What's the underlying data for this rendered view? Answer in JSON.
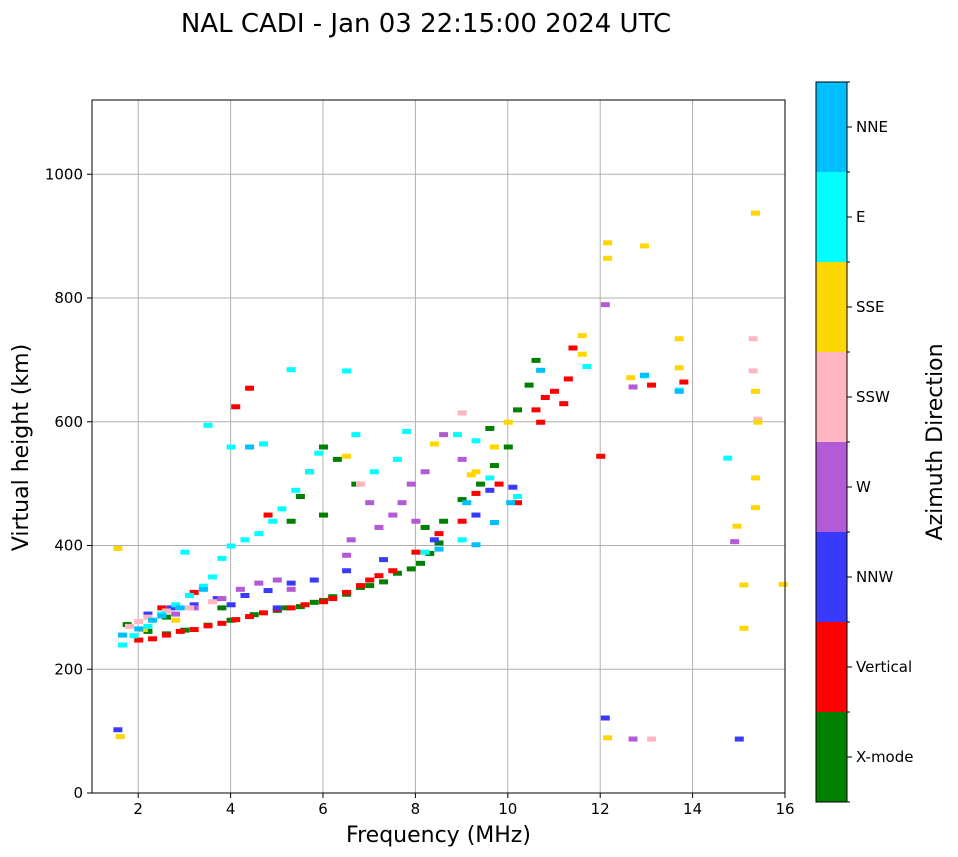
{
  "chart_data": {
    "type": "scatter",
    "title": "NAL CADI - Jan 03 22:15:00 2024 UTC",
    "xlabel": "Frequency (MHz)",
    "ylabel": "Virtual height (km)",
    "xlim": [
      1,
      16
    ],
    "ylim": [
      0,
      1120
    ],
    "xticks": [
      2,
      4,
      6,
      8,
      10,
      12,
      14,
      16
    ],
    "yticks": [
      0,
      200,
      400,
      600,
      800,
      1000
    ],
    "grid": true,
    "colorbar": {
      "label": "Azimuth Direction",
      "categories": [
        "X-mode",
        "Vertical",
        "NNW",
        "W",
        "SSW",
        "SSE",
        "E",
        "NNE"
      ],
      "colors": [
        "#008000",
        "#ff0000",
        "#3a3aff",
        "#b35ad6",
        "#ffb6c1",
        "#ffd700",
        "#00ffff",
        "#00bfff"
      ]
    },
    "series": [
      {
        "name": "X-mode",
        "points": [
          [
            1.75,
            273
          ],
          [
            2.2,
            262
          ],
          [
            2.6,
            258
          ],
          [
            3.0,
            264
          ],
          [
            3.5,
            272
          ],
          [
            4.0,
            280
          ],
          [
            4.5,
            289
          ],
          [
            5.0,
            296
          ],
          [
            5.2,
            300
          ],
          [
            5.5,
            302
          ],
          [
            5.8,
            309
          ],
          [
            6.0,
            312
          ],
          [
            6.2,
            318
          ],
          [
            6.5,
            322
          ],
          [
            6.8,
            333
          ],
          [
            7.0,
            336
          ],
          [
            7.3,
            342
          ],
          [
            7.6,
            356
          ],
          [
            7.9,
            363
          ],
          [
            8.1,
            372
          ],
          [
            8.3,
            388
          ],
          [
            8.5,
            405
          ],
          [
            8.6,
            440
          ],
          [
            9.0,
            475
          ],
          [
            9.4,
            500
          ],
          [
            9.7,
            530
          ],
          [
            10.0,
            560
          ],
          [
            10.2,
            620
          ],
          [
            10.45,
            660
          ],
          [
            10.6,
            700
          ],
          [
            6.0,
            450
          ],
          [
            6.0,
            560
          ],
          [
            5.3,
            440
          ],
          [
            5.5,
            480
          ],
          [
            6.3,
            540
          ],
          [
            6.7,
            500
          ],
          [
            8.2,
            430
          ],
          [
            9.6,
            590
          ],
          [
            3.8,
            300
          ],
          [
            2.6,
            285
          ]
        ]
      },
      {
        "name": "Vertical",
        "points": [
          [
            2.0,
            248
          ],
          [
            2.3,
            250
          ],
          [
            2.6,
            256
          ],
          [
            2.9,
            262
          ],
          [
            3.2,
            265
          ],
          [
            3.5,
            271
          ],
          [
            3.8,
            275
          ],
          [
            4.1,
            281
          ],
          [
            4.4,
            286
          ],
          [
            4.7,
            292
          ],
          [
            5.0,
            298
          ],
          [
            5.3,
            300
          ],
          [
            5.6,
            305
          ],
          [
            6.0,
            310
          ],
          [
            6.2,
            315
          ],
          [
            6.5,
            325
          ],
          [
            6.8,
            336
          ],
          [
            7.0,
            345
          ],
          [
            7.2,
            352
          ],
          [
            7.5,
            360
          ],
          [
            8.0,
            390
          ],
          [
            8.5,
            420
          ],
          [
            9.0,
            440
          ],
          [
            9.3,
            485
          ],
          [
            9.8,
            500
          ],
          [
            10.6,
            620
          ],
          [
            10.8,
            640
          ],
          [
            11.0,
            650
          ],
          [
            11.2,
            630
          ],
          [
            11.3,
            670
          ],
          [
            10.7,
            600
          ],
          [
            11.4,
            720
          ],
          [
            12.0,
            545
          ],
          [
            13.1,
            660
          ],
          [
            13.8,
            665
          ],
          [
            4.1,
            625
          ],
          [
            4.4,
            655
          ],
          [
            5.7,
            520
          ],
          [
            4.8,
            450
          ],
          [
            10.2,
            470
          ],
          [
            3.2,
            325
          ],
          [
            2.5,
            300
          ]
        ]
      },
      {
        "name": "NNW",
        "points": [
          [
            1.55,
            103
          ],
          [
            2.2,
            290
          ],
          [
            2.7,
            300
          ],
          [
            3.2,
            305
          ],
          [
            3.7,
            315
          ],
          [
            4.3,
            320
          ],
          [
            4.8,
            328
          ],
          [
            5.3,
            340
          ],
          [
            5.8,
            345
          ],
          [
            6.5,
            360
          ],
          [
            7.3,
            378
          ],
          [
            8.4,
            410
          ],
          [
            9.3,
            450
          ],
          [
            9.6,
            490
          ],
          [
            10.1,
            495
          ],
          [
            12.1,
            122
          ],
          [
            15.0,
            88
          ],
          [
            5.0,
            300
          ],
          [
            4.0,
            305
          ]
        ]
      },
      {
        "name": "W",
        "points": [
          [
            2.8,
            290
          ],
          [
            3.2,
            300
          ],
          [
            3.8,
            315
          ],
          [
            4.2,
            330
          ],
          [
            4.6,
            340
          ],
          [
            5.0,
            345
          ],
          [
            5.3,
            330
          ],
          [
            6.5,
            385
          ],
          [
            7.0,
            470
          ],
          [
            7.5,
            450
          ],
          [
            7.7,
            470
          ],
          [
            7.9,
            500
          ],
          [
            8.2,
            520
          ],
          [
            8.6,
            580
          ],
          [
            9.0,
            540
          ],
          [
            12.1,
            790
          ],
          [
            12.7,
            657
          ],
          [
            12.7,
            88
          ],
          [
            14.9,
            407
          ],
          [
            6.6,
            410
          ],
          [
            7.2,
            430
          ],
          [
            8.0,
            440
          ]
        ]
      },
      {
        "name": "SSW",
        "points": [
          [
            1.8,
            270
          ],
          [
            2.2,
            285
          ],
          [
            2.6,
            295
          ],
          [
            3.1,
            300
          ],
          [
            3.6,
            310
          ],
          [
            9.0,
            615
          ],
          [
            13.1,
            88
          ],
          [
            15.3,
            735
          ],
          [
            15.3,
            683
          ],
          [
            15.4,
            605
          ],
          [
            6.8,
            500
          ],
          [
            2.0,
            278
          ]
        ]
      },
      {
        "name": "SSE",
        "points": [
          [
            1.55,
            396
          ],
          [
            1.6,
            92
          ],
          [
            2.1,
            265
          ],
          [
            2.8,
            280
          ],
          [
            8.4,
            565
          ],
          [
            9.3,
            520
          ],
          [
            9.7,
            560
          ],
          [
            10.0,
            600
          ],
          [
            11.6,
            740
          ],
          [
            11.6,
            710
          ],
          [
            12.15,
            890
          ],
          [
            12.15,
            865
          ],
          [
            12.15,
            90
          ],
          [
            12.65,
            672
          ],
          [
            12.95,
            885
          ],
          [
            13.7,
            735
          ],
          [
            13.7,
            688
          ],
          [
            14.95,
            432
          ],
          [
            15.1,
            337
          ],
          [
            15.1,
            267
          ],
          [
            15.35,
            938
          ],
          [
            15.35,
            650
          ],
          [
            15.35,
            510
          ],
          [
            15.35,
            462
          ],
          [
            15.4,
            600
          ],
          [
            15.95,
            338
          ],
          [
            6.5,
            545
          ],
          [
            9.2,
            515
          ]
        ]
      },
      {
        "name": "E",
        "points": [
          [
            1.65,
            240
          ],
          [
            1.9,
            255
          ],
          [
            2.2,
            270
          ],
          [
            2.5,
            290
          ],
          [
            2.8,
            305
          ],
          [
            3.1,
            320
          ],
          [
            3.4,
            335
          ],
          [
            3.6,
            350
          ],
          [
            3.8,
            380
          ],
          [
            4.0,
            400
          ],
          [
            4.3,
            410
          ],
          [
            4.6,
            420
          ],
          [
            4.9,
            440
          ],
          [
            5.1,
            460
          ],
          [
            5.4,
            490
          ],
          [
            5.7,
            520
          ],
          [
            5.9,
            550
          ],
          [
            4.7,
            565
          ],
          [
            5.3,
            685
          ],
          [
            6.5,
            683
          ],
          [
            6.7,
            580
          ],
          [
            7.1,
            520
          ],
          [
            7.6,
            540
          ],
          [
            7.8,
            585
          ],
          [
            8.9,
            580
          ],
          [
            9.3,
            570
          ],
          [
            9.6,
            510
          ],
          [
            10.2,
            480
          ],
          [
            11.7,
            690
          ],
          [
            12.95,
            675
          ],
          [
            13.7,
            652
          ],
          [
            14.75,
            542
          ],
          [
            3.5,
            595
          ],
          [
            8.2,
            390
          ],
          [
            9.0,
            410
          ],
          [
            3.0,
            390
          ],
          [
            4.0,
            560
          ]
        ]
      },
      {
        "name": "NNE",
        "points": [
          [
            1.65,
            256
          ],
          [
            2.0,
            266
          ],
          [
            2.3,
            280
          ],
          [
            2.5,
            287
          ],
          [
            2.9,
            300
          ],
          [
            3.4,
            330
          ],
          [
            4.4,
            560
          ],
          [
            9.3,
            402
          ],
          [
            9.7,
            438
          ],
          [
            10.05,
            470
          ],
          [
            10.7,
            684
          ],
          [
            12.95,
            676
          ],
          [
            13.7,
            650
          ],
          [
            8.5,
            395
          ],
          [
            9.1,
            470
          ]
        ]
      }
    ]
  }
}
